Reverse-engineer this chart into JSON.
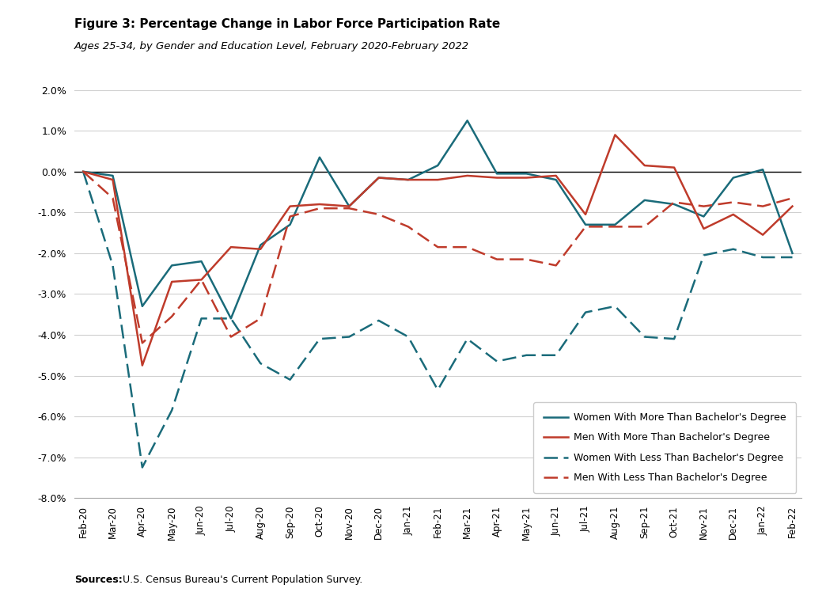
{
  "title": "Figure 3: Percentage Change in Labor Force Participation Rate",
  "subtitle": "Ages 25-34, by Gender and Education Level, February 2020-February 2022",
  "source_bold": "Sources:",
  "source_rest": " U.S. Census Bureau's Current Population Survey.",
  "x_labels": [
    "Feb-20",
    "Mar-20",
    "Apr-20",
    "May-20",
    "Jun-20",
    "Jul-20",
    "Aug-20",
    "Sep-20",
    "Oct-20",
    "Nov-20",
    "Dec-20",
    "Jan-21",
    "Feb-21",
    "Mar-21",
    "Apr-21",
    "May-21",
    "Jun-21",
    "Jul-21",
    "Aug-21",
    "Sep-21",
    "Oct-21",
    "Nov-21",
    "Dec-21",
    "Jan-22",
    "Feb-22"
  ],
  "women_more": [
    0.0,
    -0.1,
    -3.3,
    -2.3,
    -2.2,
    -3.6,
    -1.8,
    -1.3,
    0.35,
    -0.85,
    -0.15,
    -0.2,
    0.15,
    1.25,
    -0.05,
    -0.05,
    -0.2,
    -1.3,
    -1.3,
    -0.7,
    -0.8,
    -1.1,
    -0.15,
    0.05,
    -2.0
  ],
  "men_more": [
    0.0,
    -0.2,
    -4.75,
    -2.7,
    -2.65,
    -1.85,
    -1.9,
    -0.85,
    -0.8,
    -0.85,
    -0.15,
    -0.2,
    -0.2,
    -0.1,
    -0.15,
    -0.15,
    -0.1,
    -1.05,
    0.9,
    0.15,
    0.1,
    -1.4,
    -1.05,
    -1.55,
    -0.85
  ],
  "women_less": [
    0.0,
    -2.3,
    -7.25,
    -5.85,
    -3.6,
    -3.6,
    -4.7,
    -5.1,
    -4.1,
    -4.05,
    -3.65,
    -4.05,
    -5.35,
    -4.1,
    -4.65,
    -4.5,
    -4.5,
    -3.45,
    -3.3,
    -4.05,
    -4.1,
    -2.05,
    -1.9,
    -2.1,
    -2.1
  ],
  "men_less": [
    0.0,
    -0.65,
    -4.2,
    -3.55,
    -2.65,
    -4.05,
    -3.6,
    -1.1,
    -0.9,
    -0.9,
    -1.05,
    -1.35,
    -1.85,
    -1.85,
    -2.15,
    -2.15,
    -2.3,
    -1.35,
    -1.35,
    -1.35,
    -0.75,
    -0.85,
    -0.75,
    -0.85,
    -0.65
  ],
  "color_teal": "#1a6b7a",
  "color_red": "#bf3b2b",
  "ylim_min": -8.0,
  "ylim_max": 2.0,
  "yticks": [
    2.0,
    1.0,
    0.0,
    -1.0,
    -2.0,
    -3.0,
    -4.0,
    -5.0,
    -6.0,
    -7.0,
    -8.0
  ]
}
